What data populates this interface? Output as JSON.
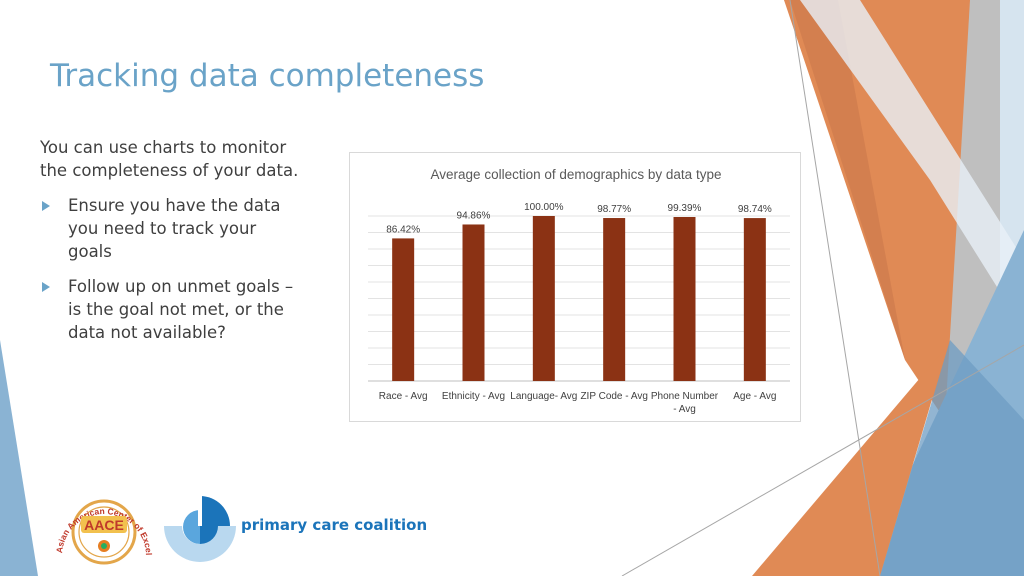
{
  "slide": {
    "title": "Tracking data completeness",
    "intro": "You can use charts to monitor the completeness of your data.",
    "bullets": [
      "Ensure you have the data you need to track your goals",
      "Follow up on unmet goals – is the goal not met, or the data not available?"
    ]
  },
  "chart_data": {
    "type": "bar",
    "title": "Average collection of demographics by data type",
    "categories": [
      [
        "Race - Avg"
      ],
      [
        "Ethnicity - Avg"
      ],
      [
        "Language- Avg"
      ],
      [
        "ZIP Code - Avg"
      ],
      [
        "Phone Number",
        "- Avg"
      ],
      [
        "Age - Avg"
      ]
    ],
    "values": [
      86.42,
      94.86,
      100.0,
      98.77,
      99.39,
      98.74
    ],
    "data_labels": [
      "86.42%",
      "94.86%",
      "100.00%",
      "98.77%",
      "99.39%",
      "98.74%"
    ],
    "ylim": [
      0,
      100
    ],
    "grid": true,
    "bar_color": "#8b3214"
  },
  "logos": {
    "aace_arc_text": "Asian American Center of Excellence",
    "aace_text": "AACE",
    "pcc_name": "primary care coalition"
  },
  "colors": {
    "title": "#6aa3c8",
    "accent_orange": "#e08a55",
    "accent_blue": "#8ab3d3",
    "gray": "#a6a6a6"
  }
}
